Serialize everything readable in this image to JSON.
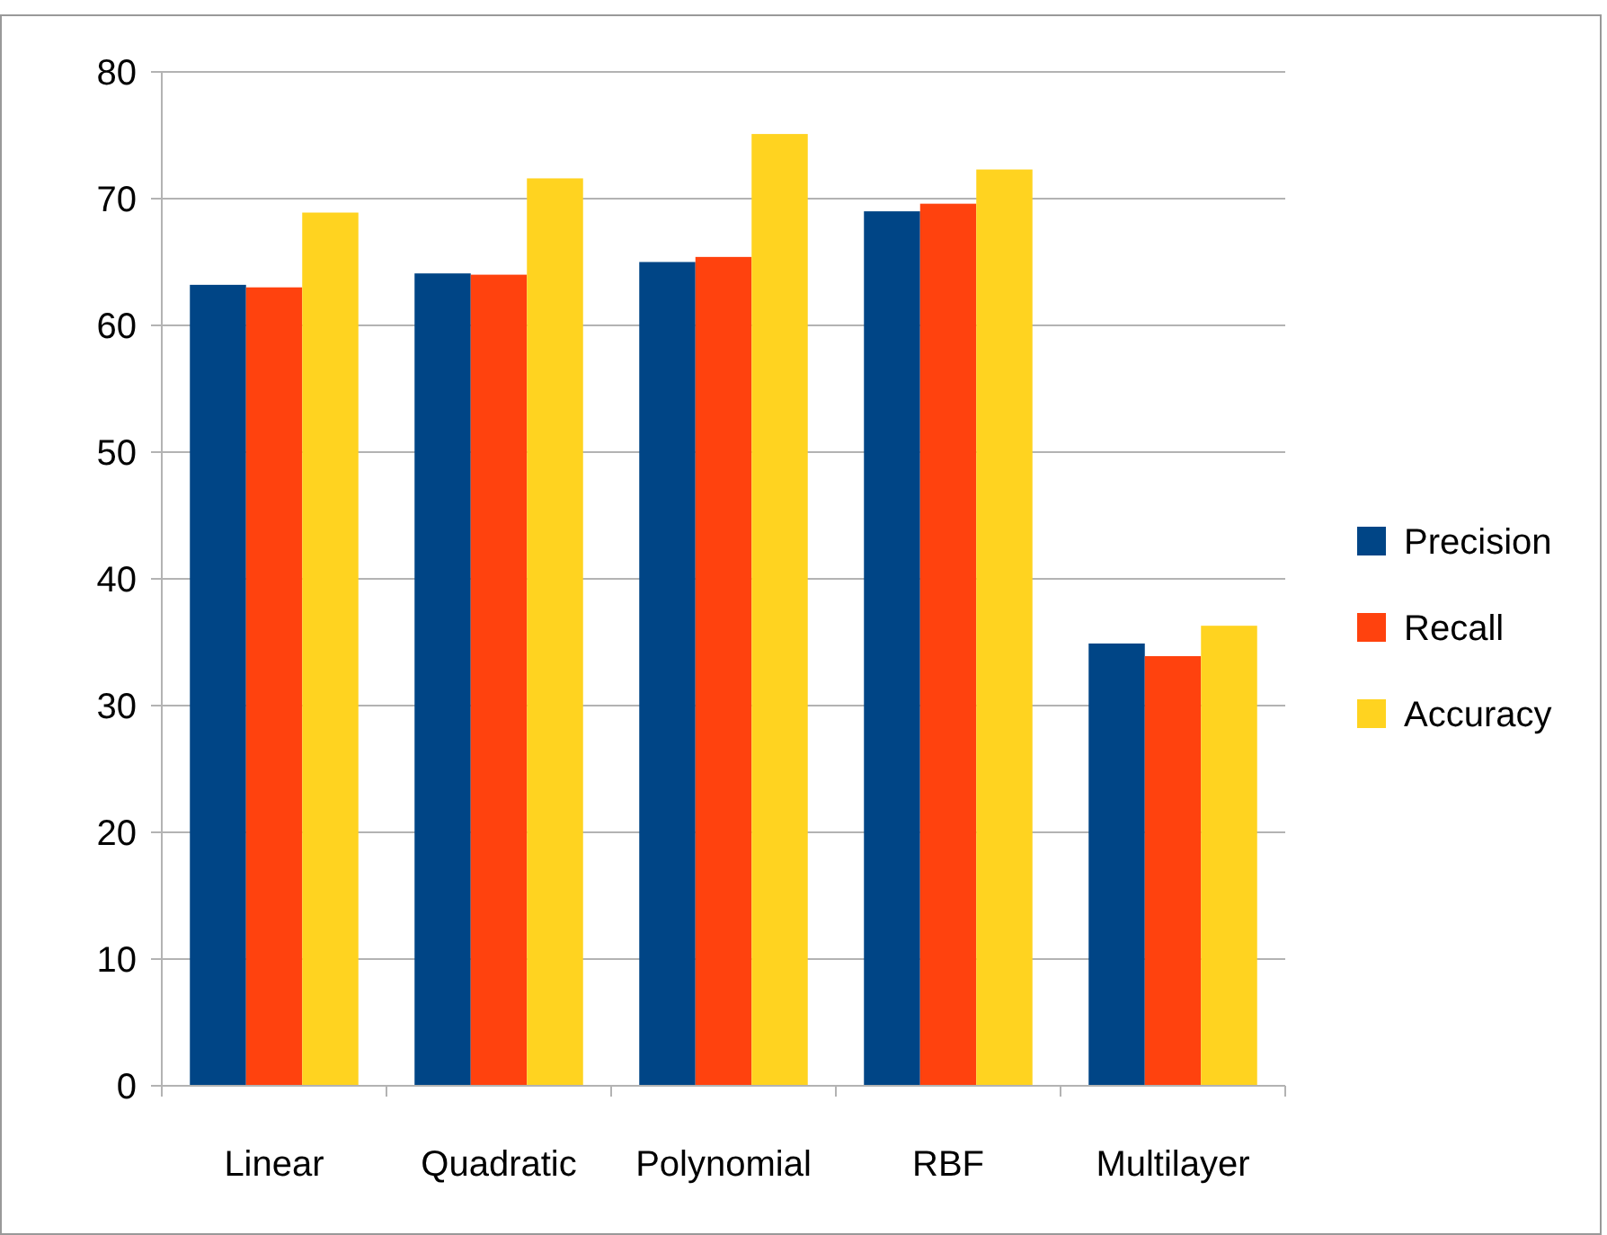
{
  "chart_data": {
    "type": "bar",
    "categories": [
      "Linear",
      "Quadratic",
      "Polynomial",
      "RBF",
      "Multilayer"
    ],
    "series": [
      {
        "name": "Precision",
        "color": "#004586",
        "values": [
          63.2,
          64.1,
          65,
          69,
          34.9
        ]
      },
      {
        "name": "Recall",
        "color": "#ff420e",
        "values": [
          63,
          64,
          65.4,
          69.6,
          33.9
        ]
      },
      {
        "name": "Accuracy",
        "color": "#ffd320",
        "values": [
          68.9,
          71.6,
          75.1,
          72.3,
          36.3
        ]
      }
    ],
    "ylim": [
      0,
      80
    ],
    "yticks": [
      0,
      10,
      20,
      30,
      40,
      50,
      60,
      70,
      80
    ],
    "grid": "y",
    "legend": "right"
  }
}
